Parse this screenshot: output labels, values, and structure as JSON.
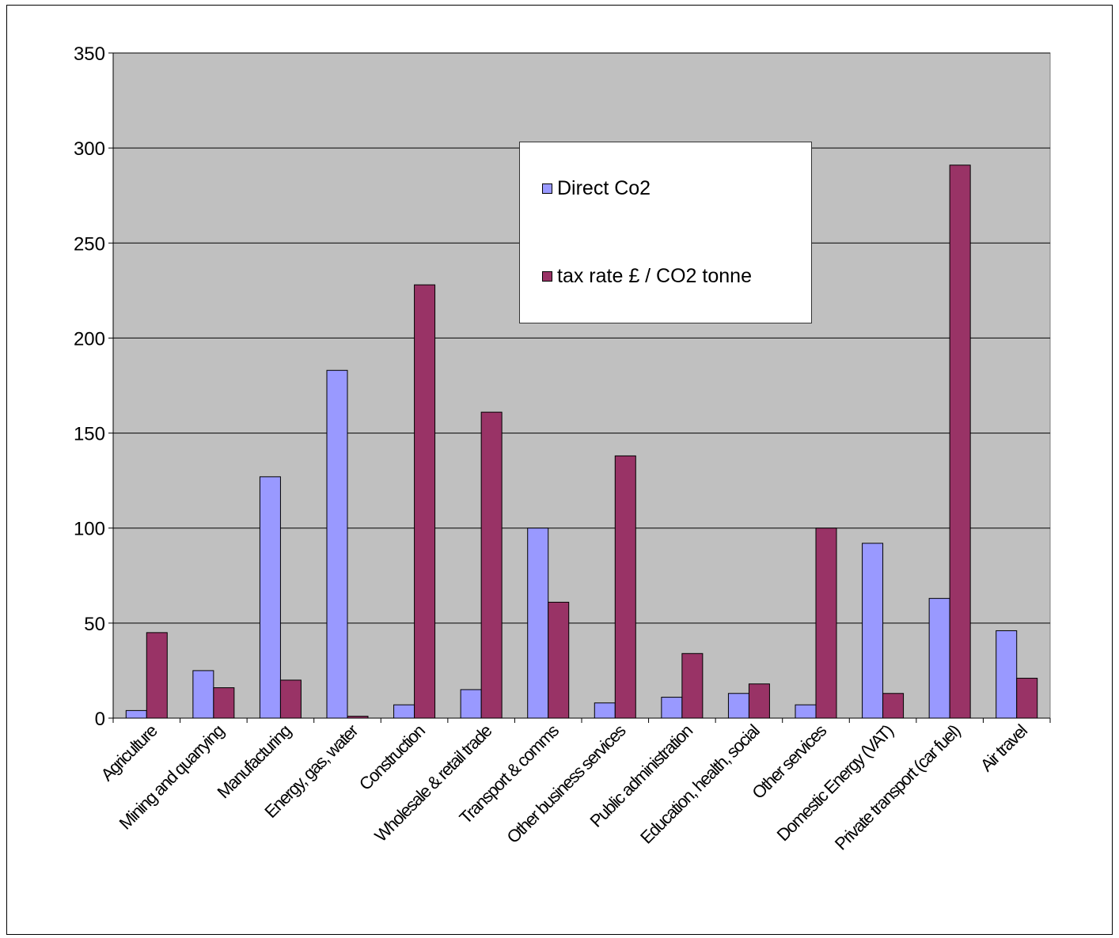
{
  "chart_data": {
    "type": "bar",
    "categories": [
      "Agriculture",
      "Mining and quarrying",
      "Manufacturing",
      "Energy, gas, water",
      "Construction",
      "Wholesale & retail trade",
      "Transport & comms",
      "Other business services",
      "Public administration",
      "Education, health, social",
      "Other services",
      "Domestic Energy (VAT)",
      "Private transport (car fuel)",
      "Air travel"
    ],
    "series": [
      {
        "name": "Direct Co2",
        "color": "#9999ff",
        "values": [
          4,
          25,
          127,
          183,
          7,
          15,
          100,
          8,
          11,
          13,
          7,
          92,
          63,
          46
        ]
      },
      {
        "name": "tax rate £ / CO2 tonne",
        "color": "#993366",
        "values": [
          45,
          16,
          20,
          1,
          228,
          161,
          61,
          138,
          34,
          18,
          100,
          13,
          291,
          21
        ]
      }
    ],
    "ylim": [
      0,
      350
    ],
    "yticks": [
      0,
      50,
      100,
      150,
      200,
      250,
      300,
      350
    ],
    "grid": true,
    "plot_background": "#c0c0c0",
    "legend_position": "top-center",
    "title": "",
    "xlabel": "",
    "ylabel": ""
  }
}
